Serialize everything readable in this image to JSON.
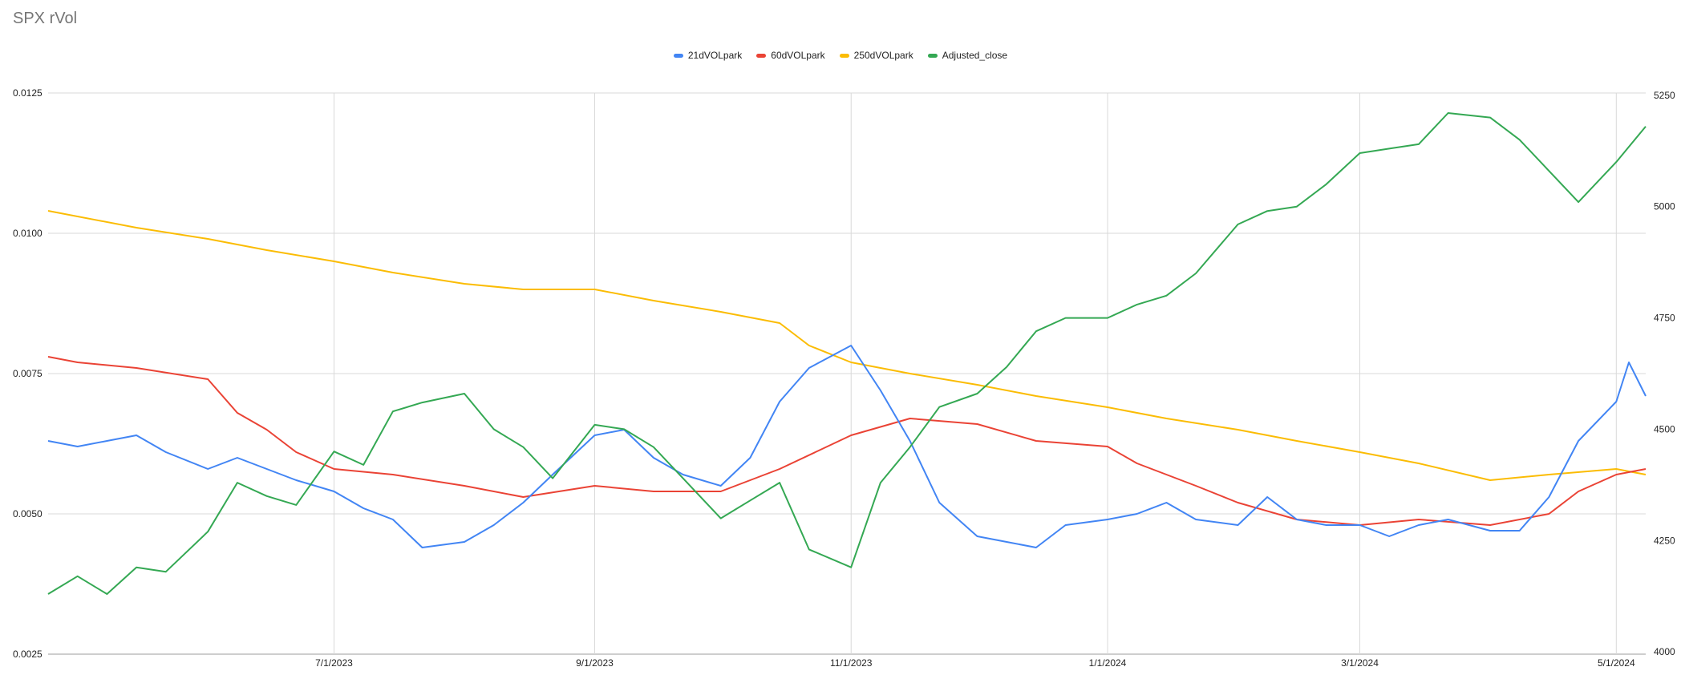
{
  "chart_data": {
    "type": "line",
    "title": "SPX rVol",
    "x_ticks": [
      "7/1/2023",
      "9/1/2023",
      "11/1/2023",
      "1/1/2024",
      "3/1/2024",
      "5/1/2024"
    ],
    "x_tick_dates": [
      "2023-07-01",
      "2023-09-01",
      "2023-11-01",
      "2024-01-01",
      "2024-03-01",
      "2024-05-01"
    ],
    "x_range": [
      "2023-04-24",
      "2024-05-08"
    ],
    "y_left": {
      "ticks": [
        "0.0025",
        "0.0050",
        "0.0075",
        "0.0100",
        "0.0125"
      ],
      "range": [
        0.0025,
        0.0125
      ]
    },
    "y_right": {
      "ticks": [
        "4000",
        "4250",
        "4500",
        "4750",
        "5000",
        "5250"
      ],
      "range": [
        3995,
        5255
      ]
    },
    "grid": true,
    "legend_position": "top",
    "series": [
      {
        "name": "21dVOLpark",
        "color": "#4285f4",
        "axis": "left",
        "x": [
          "2023-04-24",
          "2023-05-01",
          "2023-05-08",
          "2023-05-15",
          "2023-05-22",
          "2023-06-01",
          "2023-06-08",
          "2023-06-15",
          "2023-06-22",
          "2023-07-01",
          "2023-07-08",
          "2023-07-15",
          "2023-07-22",
          "2023-08-01",
          "2023-08-08",
          "2023-08-15",
          "2023-08-22",
          "2023-09-01",
          "2023-09-08",
          "2023-09-15",
          "2023-09-22",
          "2023-10-01",
          "2023-10-08",
          "2023-10-15",
          "2023-10-22",
          "2023-11-01",
          "2023-11-08",
          "2023-11-15",
          "2023-11-22",
          "2023-12-01",
          "2023-12-08",
          "2023-12-15",
          "2023-12-22",
          "2024-01-01",
          "2024-01-08",
          "2024-01-15",
          "2024-01-22",
          "2024-02-01",
          "2024-02-08",
          "2024-02-15",
          "2024-02-22",
          "2024-03-01",
          "2024-03-08",
          "2024-03-15",
          "2024-03-22",
          "2024-04-01",
          "2024-04-08",
          "2024-04-15",
          "2024-04-22",
          "2024-05-01",
          "2024-05-04",
          "2024-05-08"
        ],
        "values": [
          0.0063,
          0.0062,
          0.0063,
          0.0064,
          0.0061,
          0.0058,
          0.006,
          0.0058,
          0.0056,
          0.0054,
          0.0051,
          0.0049,
          0.0044,
          0.0045,
          0.0048,
          0.0052,
          0.0057,
          0.0064,
          0.0065,
          0.006,
          0.0057,
          0.0055,
          0.006,
          0.007,
          0.0076,
          0.008,
          0.0072,
          0.0063,
          0.0052,
          0.0046,
          0.0045,
          0.0044,
          0.0048,
          0.0049,
          0.005,
          0.0052,
          0.0049,
          0.0048,
          0.0053,
          0.0049,
          0.0048,
          0.0048,
          0.0046,
          0.0048,
          0.0049,
          0.0047,
          0.0047,
          0.0053,
          0.0063,
          0.007,
          0.0077,
          0.0071
        ]
      },
      {
        "name": "60dVOLpark",
        "color": "#ea4335",
        "axis": "left",
        "x": [
          "2023-04-24",
          "2023-05-01",
          "2023-05-15",
          "2023-06-01",
          "2023-06-08",
          "2023-06-15",
          "2023-06-22",
          "2023-07-01",
          "2023-07-15",
          "2023-08-01",
          "2023-08-15",
          "2023-09-01",
          "2023-09-15",
          "2023-10-01",
          "2023-10-15",
          "2023-11-01",
          "2023-11-15",
          "2023-12-01",
          "2023-12-15",
          "2024-01-01",
          "2024-01-08",
          "2024-01-22",
          "2024-02-01",
          "2024-02-15",
          "2024-03-01",
          "2024-03-15",
          "2024-04-01",
          "2024-04-15",
          "2024-04-22",
          "2024-05-01",
          "2024-05-08"
        ],
        "values": [
          0.0078,
          0.0077,
          0.0076,
          0.0074,
          0.0068,
          0.0065,
          0.0061,
          0.0058,
          0.0057,
          0.0055,
          0.0053,
          0.0055,
          0.0054,
          0.0054,
          0.0058,
          0.0064,
          0.0067,
          0.0066,
          0.0063,
          0.0062,
          0.0059,
          0.0055,
          0.0052,
          0.0049,
          0.0048,
          0.0049,
          0.0048,
          0.005,
          0.0054,
          0.0057,
          0.0058
        ]
      },
      {
        "name": "250dVOLpark",
        "color": "#fbbc04",
        "axis": "left",
        "x": [
          "2023-04-24",
          "2023-05-15",
          "2023-06-01",
          "2023-06-15",
          "2023-07-01",
          "2023-07-15",
          "2023-08-01",
          "2023-08-15",
          "2023-09-01",
          "2023-09-15",
          "2023-10-01",
          "2023-10-15",
          "2023-10-22",
          "2023-11-01",
          "2023-11-15",
          "2023-12-01",
          "2023-12-15",
          "2024-01-01",
          "2024-01-15",
          "2024-02-01",
          "2024-02-15",
          "2024-03-01",
          "2024-03-15",
          "2024-04-01",
          "2024-04-15",
          "2024-05-01",
          "2024-05-08"
        ],
        "values": [
          0.0104,
          0.0101,
          0.0099,
          0.0097,
          0.0095,
          0.0093,
          0.0091,
          0.009,
          0.009,
          0.0088,
          0.0086,
          0.0084,
          0.008,
          0.0077,
          0.0075,
          0.0073,
          0.0071,
          0.0069,
          0.0067,
          0.0065,
          0.0063,
          0.0061,
          0.0059,
          0.0056,
          0.0057,
          0.0058,
          0.0057
        ]
      },
      {
        "name": "Adjusted_close",
        "color": "#34a853",
        "axis": "right",
        "x": [
          "2023-04-24",
          "2023-05-01",
          "2023-05-08",
          "2023-05-15",
          "2023-05-22",
          "2023-06-01",
          "2023-06-08",
          "2023-06-15",
          "2023-06-22",
          "2023-07-01",
          "2023-07-08",
          "2023-07-15",
          "2023-07-22",
          "2023-08-01",
          "2023-08-08",
          "2023-08-15",
          "2023-08-22",
          "2023-09-01",
          "2023-09-08",
          "2023-09-15",
          "2023-09-22",
          "2023-10-01",
          "2023-10-08",
          "2023-10-15",
          "2023-10-22",
          "2023-11-01",
          "2023-11-08",
          "2023-11-15",
          "2023-11-22",
          "2023-12-01",
          "2023-12-08",
          "2023-12-15",
          "2023-12-22",
          "2024-01-01",
          "2024-01-08",
          "2024-01-15",
          "2024-01-22",
          "2024-02-01",
          "2024-02-08",
          "2024-02-15",
          "2024-02-22",
          "2024-03-01",
          "2024-03-08",
          "2024-03-15",
          "2024-03-22",
          "2024-04-01",
          "2024-04-08",
          "2024-04-15",
          "2024-04-22",
          "2024-05-01",
          "2024-05-08"
        ],
        "values": [
          4130,
          4170,
          4130,
          4190,
          4180,
          4270,
          4380,
          4350,
          4330,
          4450,
          4420,
          4540,
          4560,
          4580,
          4500,
          4460,
          4390,
          4510,
          4500,
          4460,
          4390,
          4300,
          4340,
          4380,
          4230,
          4190,
          4380,
          4460,
          4550,
          4580,
          4640,
          4720,
          4750,
          4750,
          4780,
          4800,
          4850,
          4960,
          4990,
          5000,
          5050,
          5120,
          5130,
          5140,
          5210,
          5200,
          5150,
          5080,
          5010,
          5100,
          5180
        ]
      }
    ]
  }
}
